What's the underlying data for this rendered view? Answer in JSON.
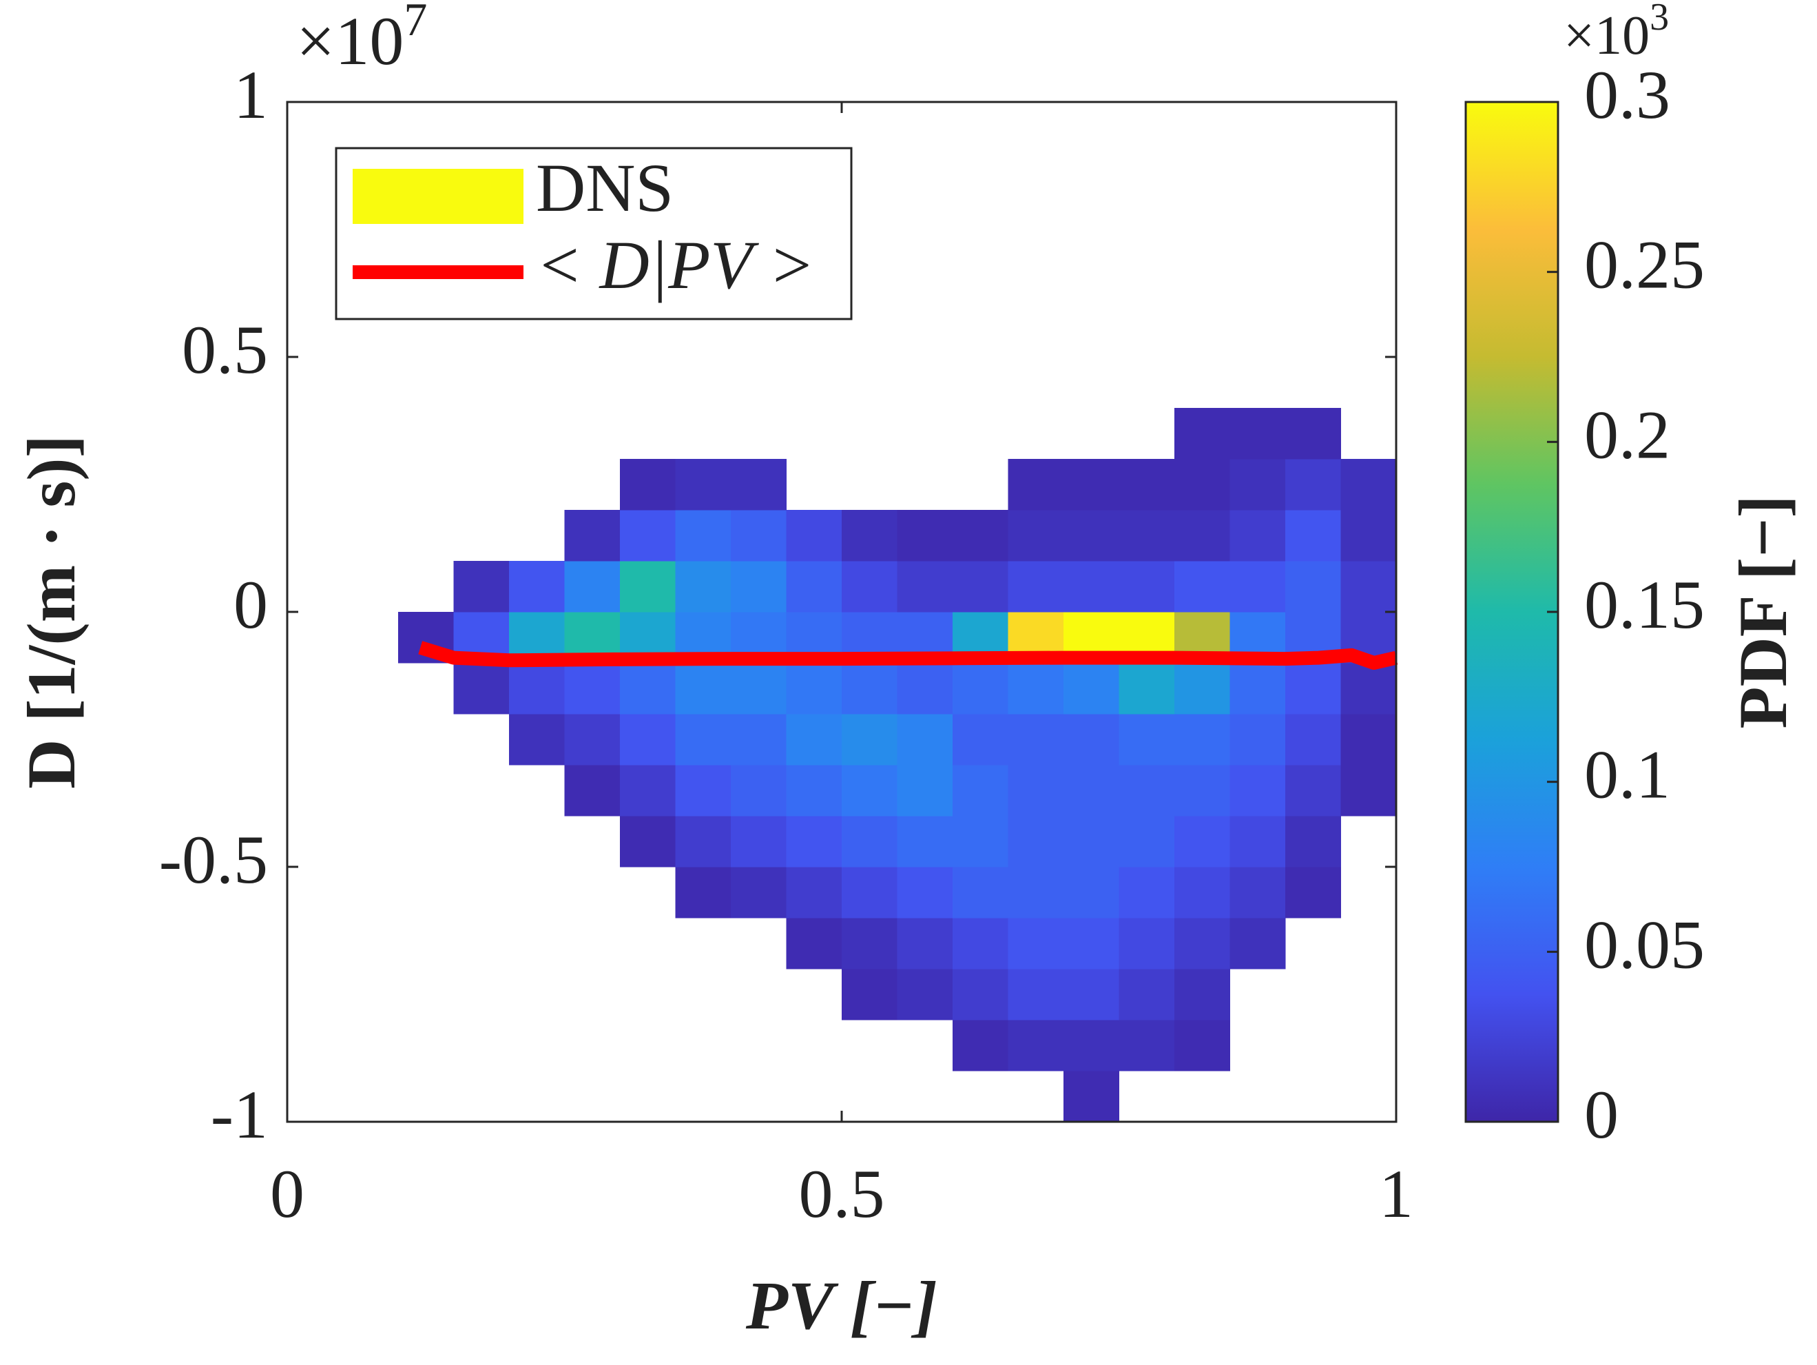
{
  "chart_data": {
    "type": "heatmap",
    "heatmap_name": "DNS",
    "legend_patch_color": "#f9fb0e",
    "colormap": "parula",
    "xlabel": "PV [−]",
    "ylabel": "D [1/(m · s)]",
    "y_multiplier": {
      "base": "×10",
      "exp": "7"
    },
    "colorbar_label": "PDF [−]",
    "colorbar_multiplier": {
      "base": "×10",
      "exp": "3"
    },
    "xlim": [
      0,
      1
    ],
    "xticks": [
      0,
      0.5,
      1
    ],
    "ylim": [
      -1,
      1
    ],
    "yticks": [
      -1,
      -0.5,
      0,
      0.5,
      1
    ],
    "clim": [
      0,
      0.3
    ],
    "cticks": [
      0,
      0.05,
      0.1,
      0.15,
      0.2,
      0.25,
      0.3
    ],
    "xbins": [
      0.1,
      0.15,
      0.2,
      0.25,
      0.3,
      0.35,
      0.4,
      0.45,
      0.5,
      0.55,
      0.6,
      0.65,
      0.7,
      0.75,
      0.8,
      0.85,
      0.9,
      0.95,
      1.0
    ],
    "ybins": [
      -1.0,
      -0.9,
      -0.8,
      -0.7,
      -0.6,
      -0.5,
      -0.4,
      -0.3,
      -0.2,
      -0.1,
      0,
      0.1,
      0.2,
      0.3,
      0.4,
      0.5
    ],
    "z": [
      [
        null,
        null,
        null,
        null,
        null,
        null,
        null,
        null,
        null,
        null,
        null,
        null,
        0.005,
        null,
        null,
        null,
        null,
        null
      ],
      [
        null,
        null,
        null,
        null,
        null,
        null,
        null,
        null,
        null,
        null,
        0.005,
        0.01,
        0.01,
        0.01,
        0.005,
        null,
        null,
        null
      ],
      [
        null,
        null,
        null,
        null,
        null,
        null,
        null,
        null,
        0.005,
        0.01,
        0.02,
        0.03,
        0.03,
        0.02,
        0.01,
        null,
        null,
        null
      ],
      [
        null,
        null,
        null,
        null,
        null,
        null,
        null,
        0.005,
        0.01,
        0.02,
        0.03,
        0.04,
        0.04,
        0.03,
        0.02,
        0.01,
        null,
        null
      ],
      [
        null,
        null,
        null,
        null,
        null,
        0.005,
        0.01,
        0.02,
        0.03,
        0.04,
        0.05,
        0.05,
        0.05,
        0.04,
        0.03,
        0.02,
        0.005,
        null
      ],
      [
        null,
        null,
        null,
        null,
        0.005,
        0.02,
        0.03,
        0.04,
        0.05,
        0.06,
        0.06,
        0.05,
        0.05,
        0.05,
        0.04,
        0.03,
        0.01,
        null
      ],
      [
        null,
        null,
        null,
        0.005,
        0.02,
        0.04,
        0.05,
        0.06,
        0.07,
        0.08,
        0.06,
        0.05,
        0.05,
        0.05,
        0.05,
        0.04,
        0.02,
        0.005
      ],
      [
        null,
        null,
        0.01,
        0.02,
        0.04,
        0.06,
        0.06,
        0.08,
        0.09,
        0.08,
        0.05,
        0.05,
        0.05,
        0.06,
        0.06,
        0.05,
        0.03,
        0.005
      ],
      [
        null,
        0.01,
        0.03,
        0.04,
        0.06,
        0.08,
        0.08,
        0.07,
        0.06,
        0.05,
        0.06,
        0.07,
        0.08,
        0.12,
        0.1,
        0.06,
        0.04,
        0.01
      ],
      [
        0.005,
        0.04,
        0.12,
        0.15,
        0.12,
        0.08,
        0.07,
        0.06,
        0.05,
        0.05,
        0.12,
        0.28,
        0.3,
        0.3,
        0.22,
        0.07,
        0.05,
        0.02
      ],
      [
        null,
        0.01,
        0.04,
        0.08,
        0.15,
        0.09,
        0.08,
        0.05,
        0.03,
        0.02,
        0.02,
        0.03,
        0.03,
        0.03,
        0.04,
        0.04,
        0.05,
        0.02
      ],
      [
        null,
        null,
        null,
        0.01,
        0.04,
        0.06,
        0.05,
        0.03,
        0.01,
        0.005,
        0.005,
        0.01,
        0.01,
        0.01,
        0.01,
        0.02,
        0.04,
        0.01
      ],
      [
        null,
        null,
        null,
        null,
        0.005,
        0.01,
        0.01,
        null,
        null,
        null,
        null,
        0.005,
        0.005,
        0.005,
        0.005,
        0.01,
        0.02,
        0.01
      ],
      [
        null,
        null,
        null,
        null,
        null,
        null,
        null,
        null,
        null,
        null,
        null,
        null,
        null,
        null,
        0.005,
        0.005,
        0.005,
        null
      ],
      [
        null,
        null,
        null,
        null,
        null,
        null,
        null,
        null,
        null,
        null,
        null,
        null,
        null,
        null,
        null,
        null,
        null,
        null
      ]
    ],
    "series": [
      {
        "name": "< D|PV >",
        "color": "#ff0000",
        "type": "line",
        "x": [
          0.12,
          0.15,
          0.2,
          0.3,
          0.4,
          0.5,
          0.6,
          0.7,
          0.8,
          0.9,
          0.93,
          0.96,
          0.98,
          1.0
        ],
        "values": [
          -0.07,
          -0.09,
          -0.095,
          -0.093,
          -0.092,
          -0.092,
          -0.091,
          -0.09,
          -0.09,
          -0.092,
          -0.09,
          -0.085,
          -0.1,
          -0.09
        ]
      }
    ]
  }
}
